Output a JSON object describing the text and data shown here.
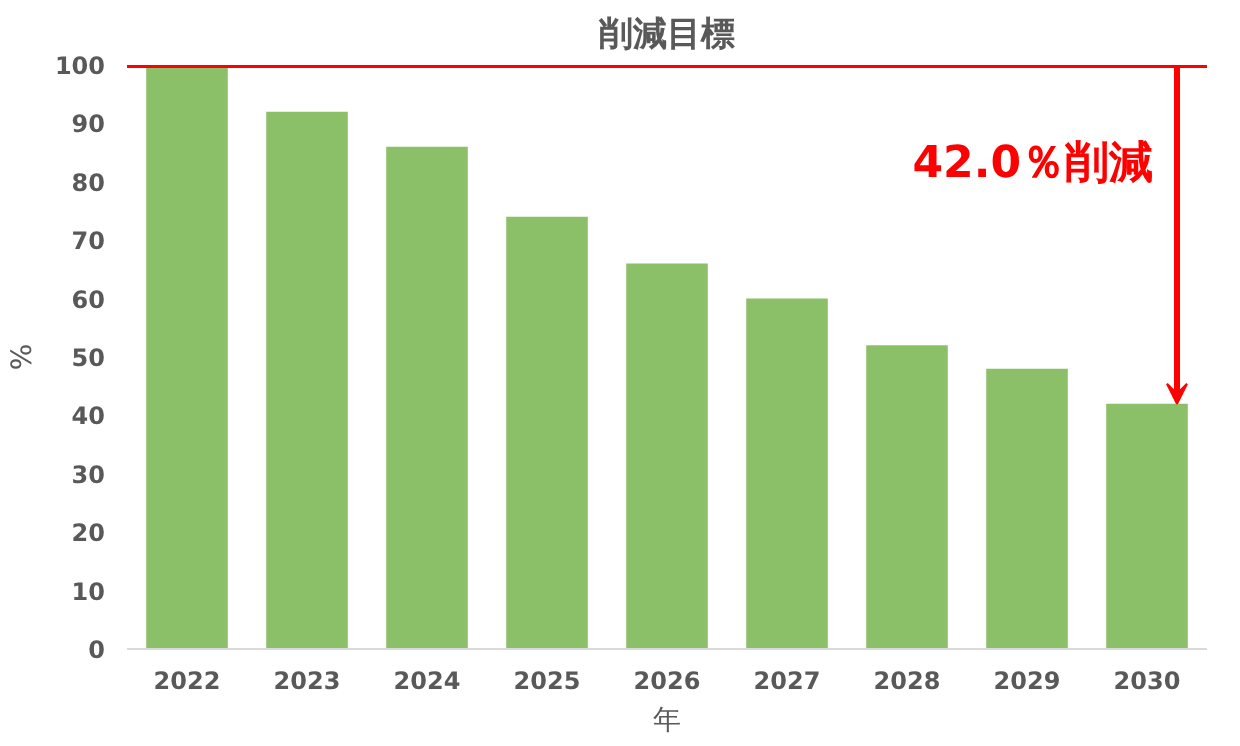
{
  "chart_data": {
    "type": "bar",
    "title": "削減目標",
    "xlabel": "年",
    "ylabel": "%",
    "categories": [
      "2022",
      "2023",
      "2024",
      "2025",
      "2026",
      "2027",
      "2028",
      "2029",
      "2030"
    ],
    "values": [
      100,
      92,
      86,
      74,
      66,
      60,
      52,
      48,
      42
    ],
    "color": "#8cc068",
    "ylim": [
      0,
      100
    ],
    "yticks": [
      0,
      10,
      20,
      30,
      40,
      50,
      60,
      70,
      80,
      90,
      100
    ],
    "grid": false,
    "ref_lines": [
      {
        "axis": "y",
        "value": 100,
        "color": "#ff0000"
      }
    ],
    "annotations": [
      "42.0％削減"
    ]
  }
}
